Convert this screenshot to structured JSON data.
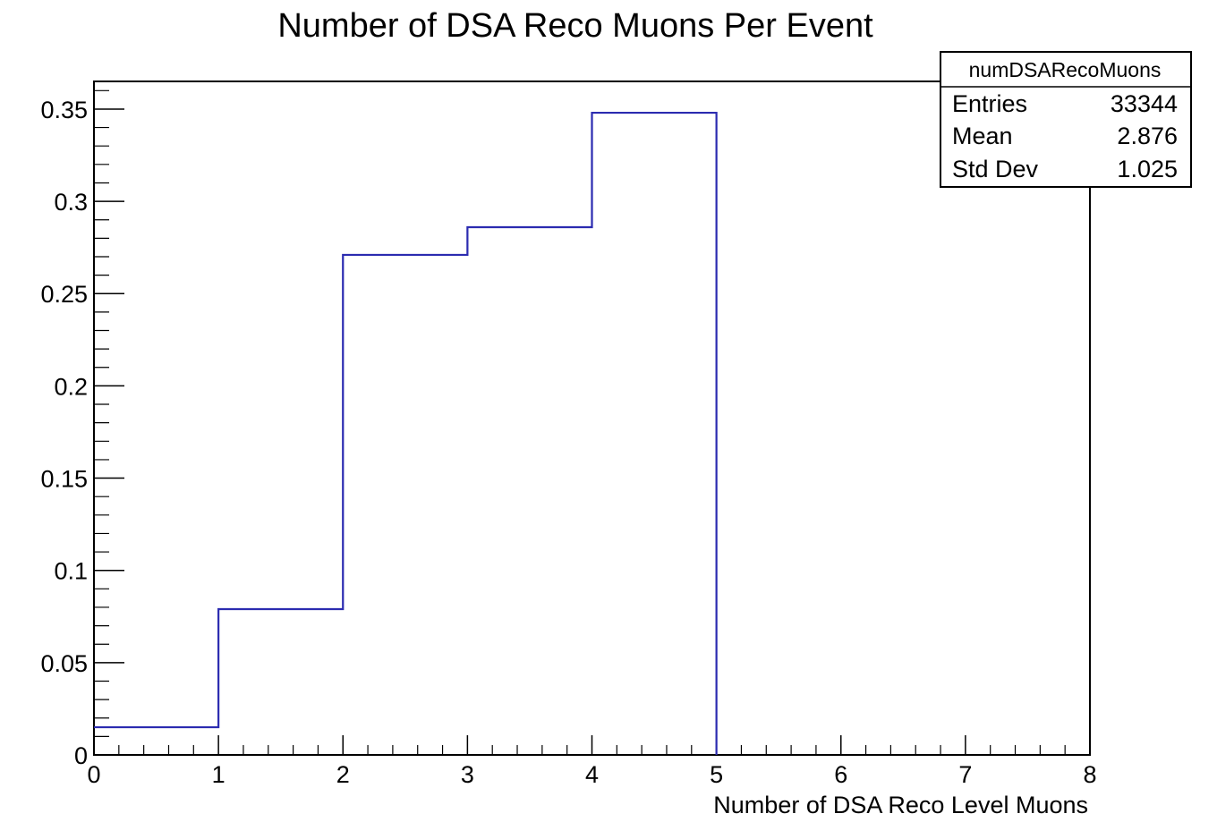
{
  "chart_data": {
    "type": "histogram",
    "title": "Number of DSA Reco Muons Per Event",
    "xlabel": "Number of DSA Reco Level Muons",
    "ylabel": "",
    "xlim": [
      0,
      8
    ],
    "ylim": [
      0,
      0.365
    ],
    "x_ticks": [
      "0",
      "1",
      "2",
      "3",
      "4",
      "5",
      "6",
      "7",
      "8"
    ],
    "y_ticks": [
      "0",
      "0.05",
      "0.1",
      "0.15",
      "0.2",
      "0.25",
      "0.3",
      "0.35"
    ],
    "bins": [
      {
        "low": 0,
        "high": 1,
        "value": 0.015
      },
      {
        "low": 1,
        "high": 2,
        "value": 0.079
      },
      {
        "low": 2,
        "high": 3,
        "value": 0.271
      },
      {
        "low": 3,
        "high": 4,
        "value": 0.286
      },
      {
        "low": 4,
        "high": 5,
        "value": 0.348
      }
    ],
    "line_color": "#2b2bb0",
    "grid": false,
    "stats_box": {
      "name": "numDSARecoMuons",
      "entries_label": "Entries",
      "entries_value": "33344",
      "mean_label": "Mean",
      "mean_value": "2.876",
      "stddev_label": "Std Dev",
      "stddev_value": "1.025",
      "placement": "top-right"
    }
  }
}
